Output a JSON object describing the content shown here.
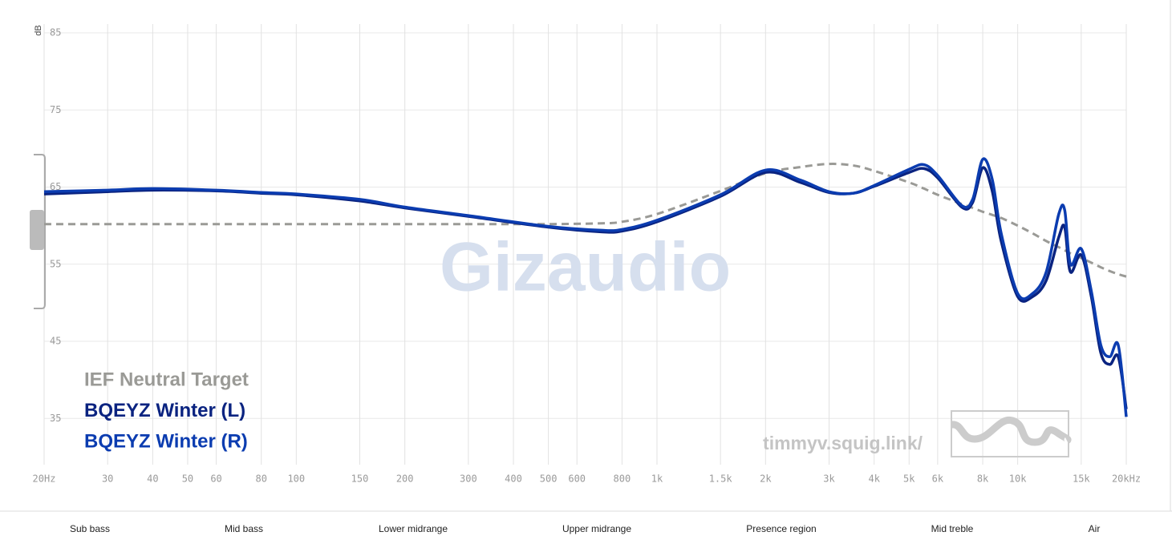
{
  "chart_data": {
    "type": "line",
    "y_label": "dB",
    "xscale": "log",
    "xlim": [
      20,
      20000
    ],
    "ylim": [
      29,
      85
    ],
    "grid": true,
    "legend": "lower left",
    "xticks": [
      {
        "value": 20,
        "label": "20Hz"
      },
      30,
      40,
      50,
      60,
      80,
      100,
      150,
      200,
      300,
      400,
      500,
      600,
      800,
      {
        "value": 1000,
        "label": "1k"
      },
      {
        "value": 1500,
        "label": "1.5k"
      },
      {
        "value": 2000,
        "label": "2k"
      },
      {
        "value": 3000,
        "label": "3k"
      },
      {
        "value": 4000,
        "label": "4k"
      },
      {
        "value": 5000,
        "label": "5k"
      },
      {
        "value": 6000,
        "label": "6k"
      },
      {
        "value": 8000,
        "label": "8k"
      },
      {
        "value": 10000,
        "label": "10k"
      },
      {
        "value": 15000,
        "label": "15k"
      },
      {
        "value": 20000,
        "label": "20kHz"
      }
    ],
    "yticks": [
      85,
      75,
      65,
      55,
      45,
      35
    ],
    "x": [
      20,
      30,
      40,
      60,
      80,
      100,
      150,
      200,
      300,
      500,
      700,
      800,
      1000,
      1500,
      2000,
      2500,
      3000,
      3500,
      4000,
      5000,
      5500,
      6000,
      7000,
      7500,
      8000,
      8500,
      9000,
      10000,
      11000,
      12000,
      13000,
      13500,
      14000,
      15000,
      16000,
      17000,
      18000,
      19000,
      20000
    ],
    "series": [
      {
        "name": "IEF Neutral Target",
        "color": "#9a9a96",
        "dashed": true,
        "values": [
          60.2,
          60.2,
          60.2,
          60.2,
          60.2,
          60.2,
          60.2,
          60.2,
          60.2,
          60.2,
          60.3,
          60.5,
          61.5,
          64.5,
          66.8,
          67.6,
          68,
          67.8,
          67.1,
          65.6,
          64.8,
          64,
          62.8,
          62.3,
          61.8,
          61.4,
          61,
          60,
          59,
          58,
          57.2,
          56.8,
          56.4,
          55.8,
          55.2,
          54.6,
          54.1,
          53.7,
          53.4
        ]
      },
      {
        "name": "BQEYZ Winter (L)",
        "color": "#0a2380",
        "dashed": false,
        "values": [
          64.1,
          64.4,
          64.6,
          64.5,
          64.2,
          64,
          63.2,
          62.3,
          61.2,
          59.8,
          59.2,
          59.3,
          60.5,
          63.8,
          66.9,
          65.6,
          64.3,
          64.2,
          65.1,
          66.9,
          67.4,
          66.2,
          62.4,
          63,
          67.5,
          64.5,
          58,
          50.8,
          50.8,
          52.9,
          58.5,
          59.8,
          54,
          56.2,
          50.8,
          43.5,
          42,
          43,
          36.2
        ]
      },
      {
        "name": "BQEYZ Winter (R)",
        "color": "#0b3cb0",
        "dashed": false,
        "values": [
          64.4,
          64.6,
          64.8,
          64.6,
          64.3,
          64.1,
          63.4,
          62.4,
          61.3,
          59.9,
          59.4,
          59.5,
          60.7,
          64,
          67.2,
          65.9,
          64.4,
          64.2,
          65.2,
          67.3,
          67.9,
          66.5,
          62.6,
          63.4,
          68.6,
          66,
          59,
          51.2,
          51.2,
          54,
          61.5,
          62,
          55,
          57,
          51.5,
          44.5,
          43,
          44.5,
          35.2
        ]
      }
    ],
    "watermark": "Gizaudio",
    "site_label": "timmyv.squig.link/"
  },
  "bands": [
    "Sub bass",
    "Mid bass",
    "Lower midrange",
    "Upper midrange",
    "Presence region",
    "Mid treble",
    "Air"
  ]
}
